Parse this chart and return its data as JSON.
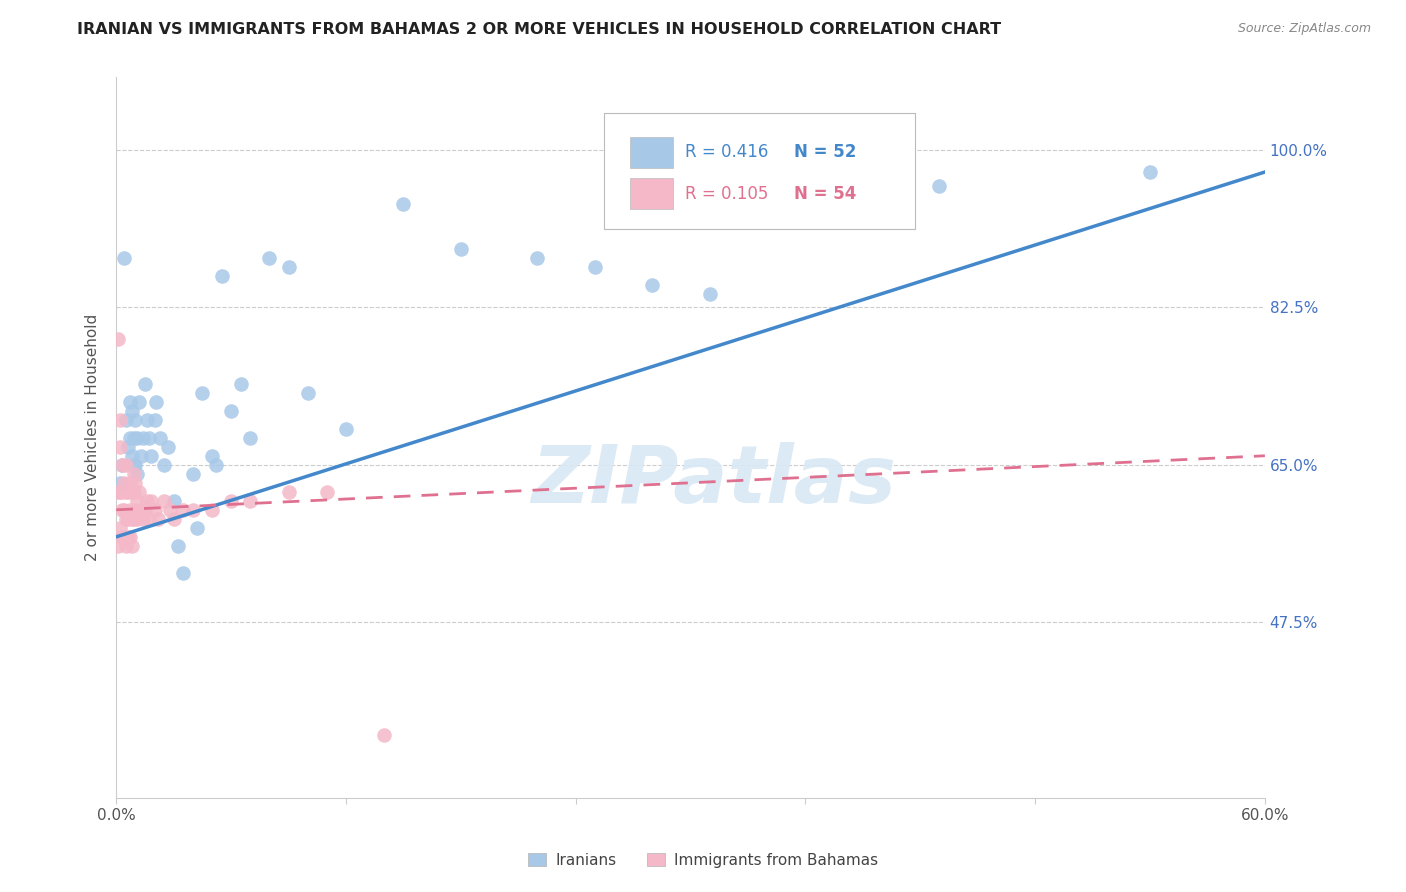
{
  "title": "IRANIAN VS IMMIGRANTS FROM BAHAMAS 2 OR MORE VEHICLES IN HOUSEHOLD CORRELATION CHART",
  "source": "Source: ZipAtlas.com",
  "ylabel": "2 or more Vehicles in Household",
  "legend_blue_r": "R = 0.416",
  "legend_blue_n": "N = 52",
  "legend_pink_r": "R = 0.105",
  "legend_pink_n": "N = 54",
  "legend_label_blue": "Iranians",
  "legend_label_pink": "Immigrants from Bahamas",
  "blue_color": "#a8c8e8",
  "pink_color": "#f4b8c8",
  "blue_line_color": "#4488cc",
  "pink_line_color": "#e07090",
  "watermark_color": "#d8e8f4",
  "xmin": 0.0,
  "xmax": 0.6,
  "ymin": 0.28,
  "ymax": 1.08,
  "ytick_vals": [
    0.475,
    0.65,
    0.825,
    1.0
  ],
  "ytick_labels": [
    "47.5%",
    "65.0%",
    "82.5%",
    "100.0%"
  ],
  "xtick_vals": [
    0.0,
    0.6
  ],
  "xtick_labels": [
    "0.0%",
    "60.0%"
  ],
  "blue_line_x0": 0.0,
  "blue_line_y0": 0.57,
  "blue_line_x1": 0.6,
  "blue_line_y1": 0.975,
  "pink_line_x0": 0.0,
  "pink_line_y0": 0.6,
  "pink_line_x1": 0.6,
  "pink_line_y1": 0.66,
  "iranians_x": [
    0.002,
    0.003,
    0.004,
    0.005,
    0.006,
    0.007,
    0.007,
    0.008,
    0.008,
    0.009,
    0.009,
    0.01,
    0.01,
    0.011,
    0.011,
    0.012,
    0.013,
    0.014,
    0.015,
    0.016,
    0.017,
    0.018,
    0.02,
    0.021,
    0.023,
    0.025,
    0.027,
    0.03,
    0.032,
    0.035,
    0.04,
    0.042,
    0.045,
    0.05,
    0.052,
    0.055,
    0.06,
    0.065,
    0.07,
    0.08,
    0.09,
    0.1,
    0.12,
    0.15,
    0.18,
    0.22,
    0.25,
    0.28,
    0.31,
    0.35,
    0.43,
    0.54
  ],
  "iranians_y": [
    0.63,
    0.65,
    0.88,
    0.7,
    0.67,
    0.72,
    0.68,
    0.66,
    0.71,
    0.68,
    0.65,
    0.7,
    0.65,
    0.68,
    0.64,
    0.72,
    0.66,
    0.68,
    0.74,
    0.7,
    0.68,
    0.66,
    0.7,
    0.72,
    0.68,
    0.65,
    0.67,
    0.61,
    0.56,
    0.53,
    0.64,
    0.58,
    0.73,
    0.66,
    0.65,
    0.86,
    0.71,
    0.74,
    0.68,
    0.88,
    0.87,
    0.73,
    0.69,
    0.94,
    0.89,
    0.88,
    0.87,
    0.85,
    0.84,
    0.94,
    0.96,
    0.975
  ],
  "bahamas_x": [
    0.001,
    0.001,
    0.001,
    0.002,
    0.002,
    0.002,
    0.002,
    0.003,
    0.003,
    0.003,
    0.003,
    0.004,
    0.004,
    0.004,
    0.005,
    0.005,
    0.005,
    0.005,
    0.006,
    0.006,
    0.006,
    0.007,
    0.007,
    0.007,
    0.008,
    0.008,
    0.008,
    0.009,
    0.009,
    0.009,
    0.01,
    0.01,
    0.011,
    0.011,
    0.012,
    0.013,
    0.014,
    0.015,
    0.016,
    0.017,
    0.018,
    0.02,
    0.022,
    0.025,
    0.028,
    0.03,
    0.035,
    0.04,
    0.05,
    0.06,
    0.07,
    0.09,
    0.11,
    0.14
  ],
  "bahamas_y": [
    0.79,
    0.62,
    0.56,
    0.7,
    0.67,
    0.62,
    0.58,
    0.65,
    0.62,
    0.6,
    0.57,
    0.63,
    0.6,
    0.57,
    0.65,
    0.62,
    0.59,
    0.56,
    0.62,
    0.59,
    0.57,
    0.63,
    0.6,
    0.57,
    0.62,
    0.59,
    0.56,
    0.64,
    0.62,
    0.59,
    0.63,
    0.6,
    0.61,
    0.59,
    0.62,
    0.6,
    0.59,
    0.6,
    0.61,
    0.59,
    0.61,
    0.6,
    0.59,
    0.61,
    0.6,
    0.59,
    0.6,
    0.6,
    0.6,
    0.61,
    0.61,
    0.62,
    0.62,
    0.35
  ]
}
